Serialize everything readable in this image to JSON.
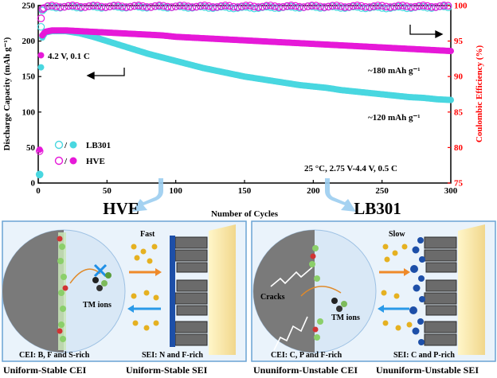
{
  "chart_data": {
    "type": "scatter",
    "xlabel": "Number of Cycles",
    "ylabel_left": "Discharge Capacity (mAh g⁻¹)",
    "ylabel_right": "Coulombic Efficiency (%)",
    "xlim": [
      0,
      300
    ],
    "ylim_left": [
      0,
      250
    ],
    "ylim_right": [
      75,
      100
    ],
    "x_ticks": [
      0,
      50,
      100,
      150,
      200,
      250,
      300
    ],
    "y_left_ticks": [
      0,
      50,
      100,
      150,
      200,
      250
    ],
    "y_right_ticks": [
      75,
      80,
      85,
      90,
      95,
      100
    ],
    "legend": [
      "LB301",
      "HVE"
    ],
    "legend_placement": "middle-left",
    "series": [
      {
        "name": "LB301",
        "kind": "capacity",
        "axis": "left",
        "color": "#49d7e0",
        "points": [
          [
            1,
            12
          ],
          [
            2,
            163
          ],
          [
            3,
            205
          ],
          [
            5,
            212
          ],
          [
            10,
            214
          ],
          [
            20,
            214
          ],
          [
            30,
            211
          ],
          [
            40,
            206
          ],
          [
            50,
            200
          ],
          [
            60,
            194
          ],
          [
            70,
            188
          ],
          [
            80,
            182
          ],
          [
            90,
            177
          ],
          [
            100,
            172
          ],
          [
            110,
            167
          ],
          [
            120,
            162
          ],
          [
            130,
            158
          ],
          [
            140,
            154
          ],
          [
            150,
            150
          ],
          [
            160,
            147
          ],
          [
            170,
            144
          ],
          [
            180,
            141
          ],
          [
            190,
            138
          ],
          [
            200,
            136
          ],
          [
            210,
            134
          ],
          [
            220,
            131
          ],
          [
            230,
            129
          ],
          [
            240,
            127
          ],
          [
            250,
            125
          ],
          [
            260,
            123
          ],
          [
            270,
            121
          ],
          [
            280,
            120
          ],
          [
            290,
            118
          ],
          [
            300,
            117
          ]
        ]
      },
      {
        "name": "HVE",
        "kind": "capacity",
        "axis": "left",
        "color": "#e619d8",
        "points": [
          [
            1,
            47
          ],
          [
            2,
            180
          ],
          [
            3,
            208
          ],
          [
            5,
            213
          ],
          [
            10,
            215
          ],
          [
            20,
            215
          ],
          [
            30,
            214
          ],
          [
            40,
            213
          ],
          [
            50,
            212
          ],
          [
            60,
            211
          ],
          [
            70,
            210
          ],
          [
            80,
            209
          ],
          [
            90,
            208
          ],
          [
            100,
            206
          ],
          [
            110,
            205
          ],
          [
            120,
            204
          ],
          [
            130,
            203
          ],
          [
            140,
            202
          ],
          [
            150,
            201
          ],
          [
            160,
            200
          ],
          [
            170,
            199
          ],
          [
            180,
            198
          ],
          [
            190,
            197
          ],
          [
            200,
            196
          ],
          [
            210,
            195
          ],
          [
            220,
            194
          ],
          [
            230,
            193
          ],
          [
            240,
            192
          ],
          [
            250,
            191
          ],
          [
            260,
            190
          ],
          [
            270,
            189
          ],
          [
            280,
            188
          ],
          [
            290,
            187
          ],
          [
            300,
            186
          ]
        ]
      },
      {
        "name": "LB301",
        "kind": "efficiency",
        "axis": "right",
        "color": "#49d7e0",
        "points": [
          [
            1,
            76.2
          ],
          [
            2,
            97.0
          ],
          [
            3,
            99.3
          ],
          [
            5,
            99.7
          ],
          [
            10,
            99.8
          ],
          [
            50,
            99.8
          ],
          [
            100,
            99.8
          ],
          [
            150,
            99.7
          ],
          [
            200,
            99.8
          ],
          [
            250,
            99.7
          ],
          [
            300,
            99.8
          ]
        ]
      },
      {
        "name": "HVE",
        "kind": "efficiency",
        "axis": "right",
        "color": "#e619d8",
        "points": [
          [
            1,
            79.5
          ],
          [
            2,
            98.2
          ],
          [
            3,
            99.5
          ],
          [
            5,
            99.8
          ],
          [
            10,
            99.9
          ],
          [
            50,
            99.9
          ],
          [
            100,
            99.9
          ],
          [
            150,
            99.9
          ],
          [
            200,
            99.9
          ],
          [
            250,
            99.9
          ],
          [
            300,
            99.9
          ]
        ]
      }
    ],
    "annotations": [
      "4.2 V, 0.1 C",
      "~180 mAh g⁻¹",
      "~120 mAh g⁻¹",
      "25 °C, 2.75 V-4.4 V, 0.5 C"
    ]
  },
  "labels": {
    "hve_title": "HVE",
    "lb301_title": "LB301",
    "left_panel": {
      "speed": "Fast",
      "tm_ions": "TM ions",
      "cei": "CEI:  B, F and S-rich",
      "sei": "SEI:  N and F-rich"
    },
    "right_panel": {
      "speed": "Slow",
      "cracks": "Cracks",
      "tm_ions": "TM ions",
      "cei": "CEI:  C, P and F-rich",
      "sei": "SEI:  C and P-rich"
    },
    "captions": {
      "c1": "Uniform-Stable CEI",
      "c2": "Uniform-Stable SEI",
      "c3": "Ununiform-Unstable CEI",
      "c4": "Ununiform-Unstable SEI"
    }
  },
  "colors": {
    "lb301": "#49d7e0",
    "hve": "#e619d8",
    "right_axis": "#ff0000",
    "arrow_blue": "#9bcdef"
  }
}
